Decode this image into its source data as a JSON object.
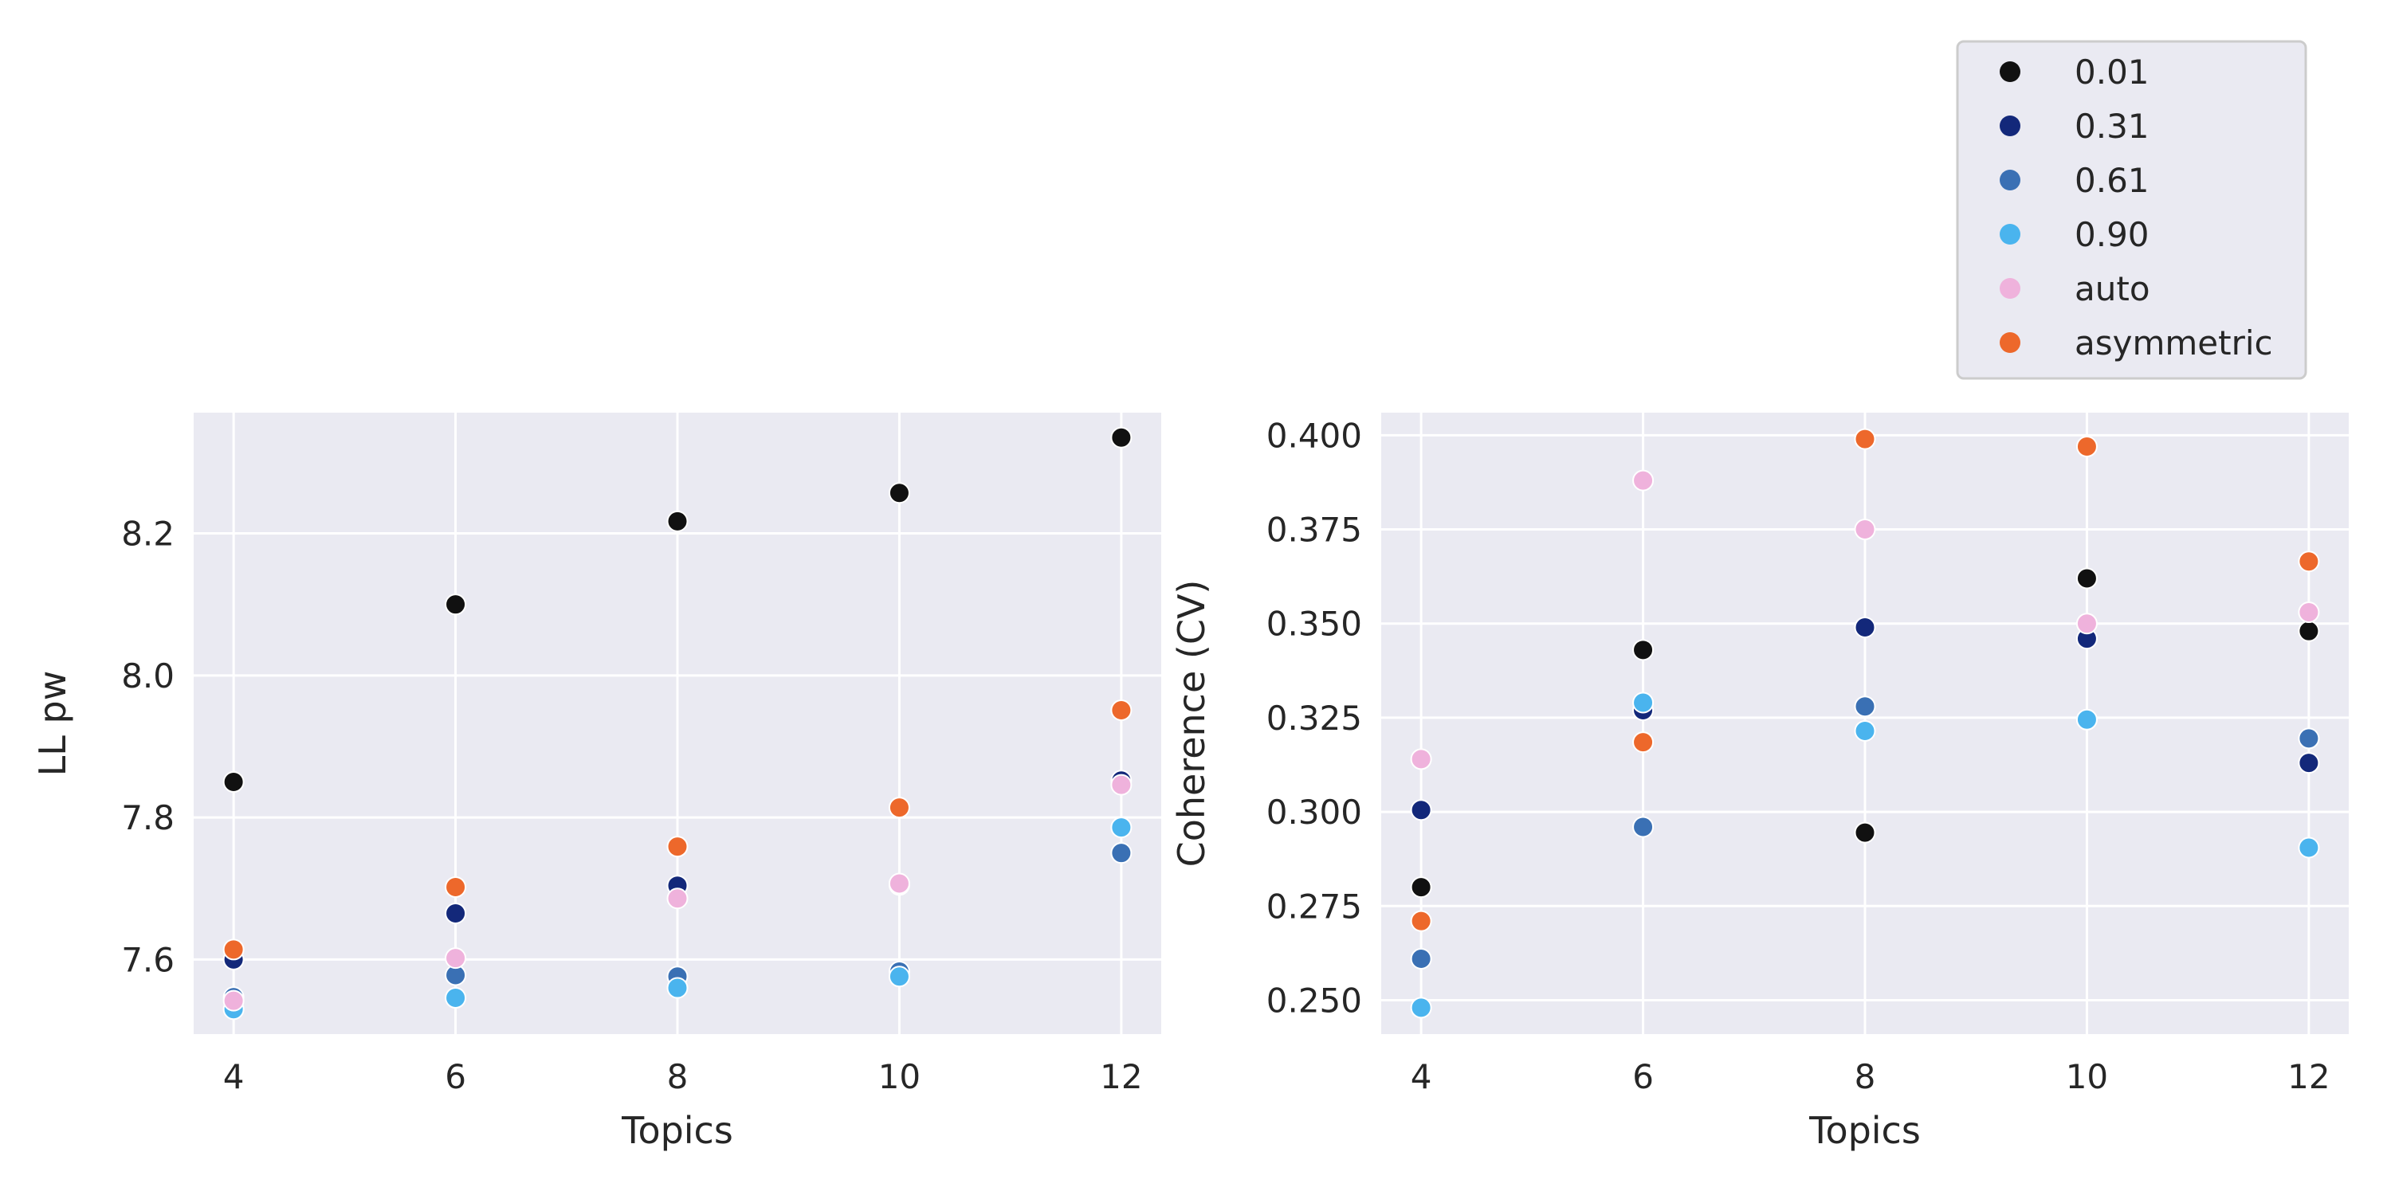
{
  "chart_data": [
    {
      "type": "scatter",
      "xlabel": "Topics",
      "ylabel": "LL pw",
      "xlim": [
        3.64,
        12.36
      ],
      "ylim": [
        7.495,
        8.37
      ],
      "xticks": [
        "4",
        "6",
        "8",
        "10",
        "12"
      ],
      "yticks": [
        "7.6",
        "7.8",
        "8.0",
        "8.2"
      ],
      "x": [
        4,
        6,
        8,
        10,
        12
      ],
      "series": [
        {
          "name": "0.01",
          "color": "#111111",
          "values": [
            7.85,
            8.1,
            8.217,
            8.257,
            8.335
          ]
        },
        {
          "name": "0.31",
          "color": "#13287a",
          "values": [
            7.6,
            7.665,
            7.704,
            7.705,
            7.852
          ]
        },
        {
          "name": "0.61",
          "color": "#3a70b4",
          "values": [
            7.547,
            7.578,
            7.576,
            7.583,
            7.75
          ]
        },
        {
          "name": "0.90",
          "color": "#4ab4ee",
          "values": [
            7.53,
            7.546,
            7.56,
            7.576,
            7.786
          ]
        },
        {
          "name": "auto",
          "color": "#efb2dc",
          "values": [
            7.542,
            7.602,
            7.686,
            7.707,
            7.846
          ]
        },
        {
          "name": "asymmetric",
          "color": "#ed682b",
          "values": [
            7.614,
            7.702,
            7.759,
            7.814,
            7.951
          ]
        }
      ]
    },
    {
      "type": "scatter",
      "xlabel": "Topics",
      "ylabel": "Coherence (CV)",
      "xlim": [
        3.64,
        12.36
      ],
      "ylim": [
        0.241,
        0.406
      ],
      "xticks": [
        "4",
        "6",
        "8",
        "10",
        "12"
      ],
      "yticks": [
        "0.250",
        "0.275",
        "0.300",
        "0.325",
        "0.350",
        "0.375",
        "0.400"
      ],
      "x": [
        4,
        6,
        8,
        10,
        12
      ],
      "series": [
        {
          "name": "0.01",
          "color": "#111111",
          "values": [
            0.28,
            0.343,
            0.2945,
            0.362,
            0.348
          ]
        },
        {
          "name": "0.31",
          "color": "#13287a",
          "values": [
            0.3005,
            0.327,
            0.349,
            0.346,
            0.313
          ]
        },
        {
          "name": "0.61",
          "color": "#3a70b4",
          "values": [
            0.261,
            0.296,
            0.328,
            0.3245,
            0.3195
          ]
        },
        {
          "name": "0.90",
          "color": "#4ab4ee",
          "values": [
            0.248,
            0.329,
            0.3215,
            0.3245,
            0.2905
          ]
        },
        {
          "name": "auto",
          "color": "#efb2dc",
          "values": [
            0.314,
            0.388,
            0.375,
            0.35,
            0.353
          ]
        },
        {
          "name": "asymmetric",
          "color": "#ed682b",
          "values": [
            0.271,
            0.3185,
            0.399,
            0.397,
            0.3665
          ]
        }
      ]
    }
  ],
  "legend": {
    "position": "top-right",
    "entries": [
      {
        "label": "0.01",
        "color": "#111111"
      },
      {
        "label": "0.31",
        "color": "#13287a"
      },
      {
        "label": "0.61",
        "color": "#3a70b4"
      },
      {
        "label": "0.90",
        "color": "#4ab4ee"
      },
      {
        "label": "auto",
        "color": "#efb2dc"
      },
      {
        "label": "asymmetric",
        "color": "#ed682b"
      }
    ]
  },
  "style": {
    "axes_bg": "#eaeaf2",
    "grid_color": "#ffffff",
    "text_color": "#262626"
  }
}
